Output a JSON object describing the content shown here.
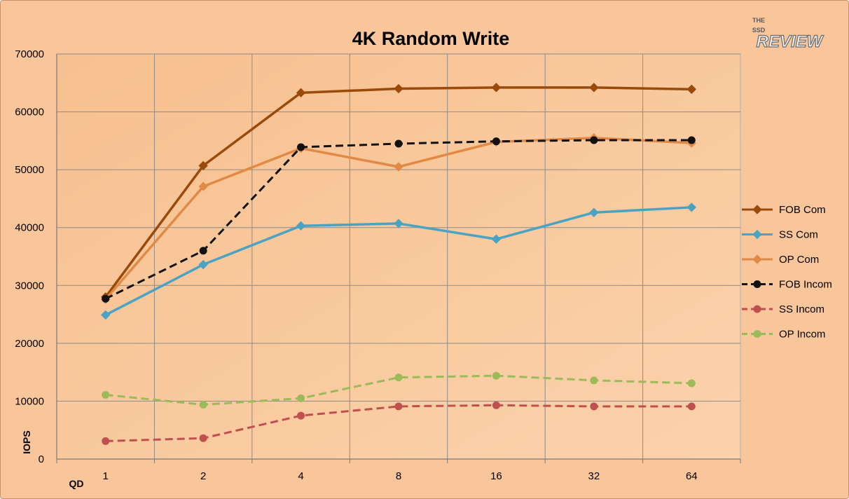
{
  "chart_data": {
    "type": "line",
    "title": "4K Random Write",
    "xlabel": "QD",
    "ylabel": "IOPS",
    "categories": [
      "1",
      "2",
      "4",
      "8",
      "16",
      "32",
      "64"
    ],
    "ylim": [
      0,
      70000
    ],
    "yticks": [
      0,
      10000,
      20000,
      30000,
      40000,
      50000,
      60000,
      70000
    ],
    "grid": true,
    "legend_position": "right",
    "series": [
      {
        "name": "FOB Com",
        "values": [
          28000,
          50700,
          63300,
          64000,
          64200,
          64200,
          63900
        ],
        "color": "#9a4a0b",
        "marker": "diamond",
        "dash": "solid"
      },
      {
        "name": "SS Com",
        "values": [
          24900,
          33600,
          40300,
          40700,
          38000,
          42600,
          43500
        ],
        "color": "#4aa3c2",
        "marker": "diamond",
        "dash": "solid"
      },
      {
        "name": "OP Com",
        "values": [
          27600,
          47100,
          53700,
          50500,
          54800,
          55500,
          54600
        ],
        "color": "#e08a46",
        "marker": "diamond",
        "dash": "solid"
      },
      {
        "name": "FOB Incom",
        "values": [
          27700,
          36000,
          53900,
          54500,
          54900,
          55100,
          55100
        ],
        "color": "#111111",
        "marker": "circle",
        "dash": "dashed"
      },
      {
        "name": "SS Incom",
        "values": [
          3100,
          3600,
          7500,
          9100,
          9300,
          9100,
          9100
        ],
        "color": "#c0504d",
        "marker": "circle",
        "dash": "dashed"
      },
      {
        "name": "OP Incom",
        "values": [
          11100,
          9400,
          10500,
          14100,
          14400,
          13600,
          13100
        ],
        "color": "#9bbb59",
        "marker": "circle",
        "dash": "dashed"
      }
    ]
  },
  "logo": {
    "top_text": "THE",
    "middle_text": "SSD",
    "main_text": "REVIEW"
  }
}
